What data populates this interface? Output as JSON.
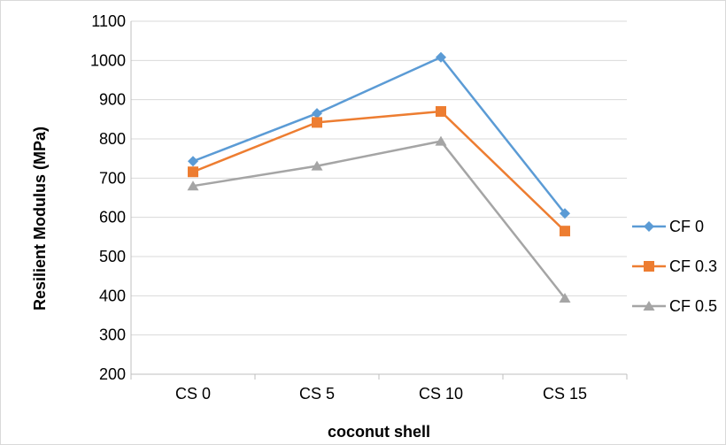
{
  "chart_data": {
    "type": "line",
    "title": "",
    "xlabel": "coconut shell",
    "ylabel": "Resilient Modulus (MPa)",
    "categories": [
      "CS 0",
      "CS 5",
      "CS 10",
      "CS 15"
    ],
    "ylim": [
      200,
      1100
    ],
    "yticks": [
      200,
      300,
      400,
      500,
      600,
      700,
      800,
      900,
      1000,
      1100
    ],
    "grid": true,
    "legend_position": "right",
    "series": [
      {
        "name": "CF 0",
        "values": [
          743,
          865,
          1008,
          610
        ],
        "color": "#5B9BD5",
        "marker": "diamond"
      },
      {
        "name": "CF 0.3",
        "values": [
          716,
          842,
          870,
          565
        ],
        "color": "#ED7D31",
        "marker": "square"
      },
      {
        "name": "CF 0.5",
        "values": [
          680,
          731,
          794,
          394
        ],
        "color": "#A5A5A5",
        "marker": "triangle"
      }
    ]
  }
}
